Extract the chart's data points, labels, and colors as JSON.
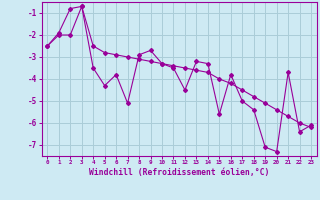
{
  "x": [
    0,
    1,
    2,
    3,
    4,
    5,
    6,
    7,
    8,
    9,
    10,
    11,
    12,
    13,
    14,
    15,
    16,
    17,
    18,
    19,
    20,
    21,
    22,
    23
  ],
  "y_main": [
    -2.5,
    -2.0,
    -2.0,
    -0.7,
    -3.5,
    -4.3,
    -3.8,
    -5.1,
    -2.9,
    -2.7,
    -3.3,
    -3.5,
    -4.5,
    -3.2,
    -3.3,
    -5.6,
    -3.8,
    -5.0,
    -5.4,
    -7.1,
    -7.3,
    -3.7,
    -6.4,
    -6.1
  ],
  "y_trend": [
    -2.5,
    -1.9,
    -0.8,
    -0.7,
    -2.5,
    -2.8,
    -2.9,
    -3.0,
    -3.1,
    -3.2,
    -3.3,
    -3.4,
    -3.5,
    -3.6,
    -3.7,
    -4.0,
    -4.2,
    -4.5,
    -4.8,
    -5.1,
    -5.4,
    -5.7,
    -6.0,
    -6.2
  ],
  "color": "#990099",
  "bg_color": "#ceeaf3",
  "grid_color": "#aacdd8",
  "xlabel": "Windchill (Refroidissement éolien,°C)",
  "ylim": [
    -7.5,
    -0.5
  ],
  "xlim": [
    -0.5,
    23.5
  ],
  "yticks": [
    -7,
    -6,
    -5,
    -4,
    -3,
    -2,
    -1
  ],
  "xticks": [
    0,
    1,
    2,
    3,
    4,
    5,
    6,
    7,
    8,
    9,
    10,
    11,
    12,
    13,
    14,
    15,
    16,
    17,
    18,
    19,
    20,
    21,
    22,
    23
  ]
}
